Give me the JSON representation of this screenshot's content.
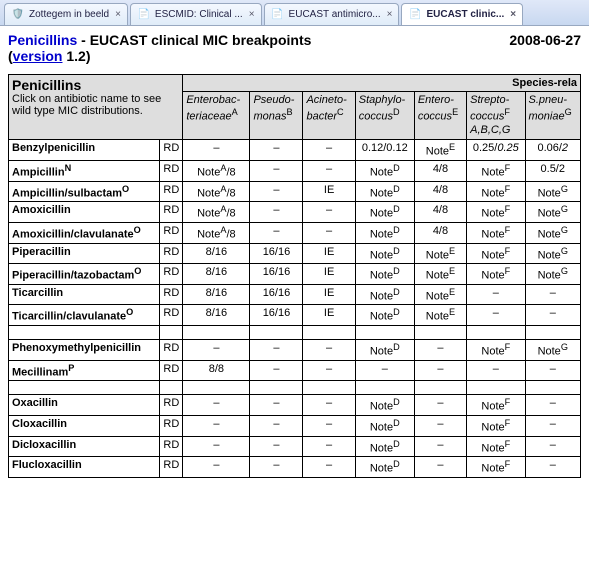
{
  "tabs": [
    {
      "label": "Zottegem in beeld",
      "icon": "🛡️",
      "active": false
    },
    {
      "label": "ESCMID: Clinical ...",
      "icon": "📄",
      "active": false
    },
    {
      "label": "EUCAST antimicro...",
      "icon": "📄",
      "active": false
    },
    {
      "label": "EUCAST clinic...",
      "icon": "📄",
      "active": true
    }
  ],
  "header": {
    "title_blue": "Penicillins",
    "title_rest": " - EUCAST clinical MIC breakpoints",
    "date": "2008-06-27",
    "paren_open": "(",
    "version_link": "version",
    "version_num": " 1.2)",
    "corner_title": "Penicillins",
    "corner_sub": "Click on antibiotic name to see wild type MIC distributions.",
    "species_header": "Species-rela"
  },
  "columns": [
    {
      "l1": "Enterobac-",
      "l2": "teriaceae",
      "sup": "A"
    },
    {
      "l1": "Pseudo-",
      "l2": "monas",
      "sup": "B"
    },
    {
      "l1": "Acineto-",
      "l2": "bacter",
      "sup": "C"
    },
    {
      "l1": "Staphylo-",
      "l2": "coccus",
      "sup": "D"
    },
    {
      "l1": "Entero-",
      "l2": "coccus",
      "sup": "E"
    },
    {
      "l1": "Strepto-",
      "l2": "coccus",
      "l3": "A,B,C,G",
      "sup": "F"
    },
    {
      "l1": "S.pneu-",
      "l2": "moniae",
      "sup": "G"
    }
  ],
  "rows": [
    {
      "name": "Benzylpenicillin",
      "sup": "",
      "rd": "RD",
      "c": [
        "–",
        "–",
        "–",
        "0.12/0.12",
        "Note<sup>E</sup>",
        "0.25/<i>0.25</i>",
        "0.06/<i>2</i>"
      ]
    },
    {
      "name": "Ampicillin",
      "sup": "N",
      "rd": "RD",
      "c": [
        "Note<sup>A</sup>/8",
        "–",
        "–",
        "Note<sup>D</sup>",
        "4/8",
        "Note<sup>F</sup>",
        "0.5/2"
      ]
    },
    {
      "name": "Ampicillin/sulbactam",
      "sup": "O",
      "rd": "RD",
      "c": [
        "Note<sup>A</sup>/8",
        "–",
        "IE",
        "Note<sup>D</sup>",
        "4/8",
        "Note<sup>F</sup>",
        "Note<sup>G</sup>"
      ]
    },
    {
      "name": "Amoxicillin",
      "sup": "",
      "rd": "RD",
      "c": [
        "Note<sup>A</sup>/8",
        "–",
        "–",
        "Note<sup>D</sup>",
        "4/8",
        "Note<sup>F</sup>",
        "Note<sup>G</sup>"
      ]
    },
    {
      "name": "Amoxicillin/clavulanate",
      "sup": "O",
      "rd": "RD",
      "c": [
        "Note<sup>A</sup>/8",
        "–",
        "–",
        "Note<sup>D</sup>",
        "4/8",
        "Note<sup>F</sup>",
        "Note<sup>G</sup>"
      ]
    },
    {
      "name": "Piperacillin",
      "sup": "",
      "rd": "RD",
      "c": [
        "8/16",
        "16/16",
        "IE",
        "Note<sup>D</sup>",
        "Note<sup>E</sup>",
        "Note<sup>F</sup>",
        "Note<sup>G</sup>"
      ]
    },
    {
      "name": "Piperacillin/tazobactam",
      "sup": "O",
      "rd": "RD",
      "c": [
        "8/16",
        "16/16",
        "IE",
        "Note<sup>D</sup>",
        "Note<sup>E</sup>",
        "Note<sup>F</sup>",
        "Note<sup>G</sup>"
      ]
    },
    {
      "name": "Ticarcillin",
      "sup": "",
      "rd": "RD",
      "c": [
        "8/16",
        "16/16",
        "IE",
        "Note<sup>D</sup>",
        "Note<sup>E</sup>",
        "–",
        "–"
      ]
    },
    {
      "name": "Ticarcillin/clavulanate",
      "sup": "O",
      "rd": "RD",
      "c": [
        "8/16",
        "16/16",
        "IE",
        "Note<sup>D</sup>",
        "Note<sup>E</sup>",
        "–",
        "–"
      ]
    },
    {
      "spacer": true
    },
    {
      "name": "Phenoxymethylpenicillin",
      "sup": "",
      "rd": "RD",
      "c": [
        "–",
        "–",
        "–",
        "Note<sup>D</sup>",
        "–",
        "Note<sup>F</sup>",
        "Note<sup>G</sup>"
      ]
    },
    {
      "name": "Mecillinam",
      "sup": "P",
      "rd": "RD",
      "c": [
        "8/8",
        "–",
        "–",
        "–",
        "–",
        "–",
        "–"
      ]
    },
    {
      "spacer": true
    },
    {
      "name": "Oxacillin",
      "sup": "",
      "rd": "RD",
      "c": [
        "–",
        "–",
        "–",
        "Note<sup>D</sup>",
        "–",
        "Note<sup>F</sup>",
        "–"
      ]
    },
    {
      "name": "Cloxacillin",
      "sup": "",
      "rd": "RD",
      "c": [
        "–",
        "–",
        "–",
        "Note<sup>D</sup>",
        "–",
        "Note<sup>F</sup>",
        "–"
      ]
    },
    {
      "name": "Dicloxacillin",
      "sup": "",
      "rd": "RD",
      "c": [
        "–",
        "–",
        "–",
        "Note<sup>D</sup>",
        "–",
        "Note<sup>F</sup>",
        "–"
      ]
    },
    {
      "name": "Flucloxacillin",
      "sup": "",
      "rd": "RD",
      "c": [
        "–",
        "–",
        "–",
        "Note<sup>D</sup>",
        "–",
        "Note<sup>F</sup>",
        "–"
      ]
    }
  ]
}
